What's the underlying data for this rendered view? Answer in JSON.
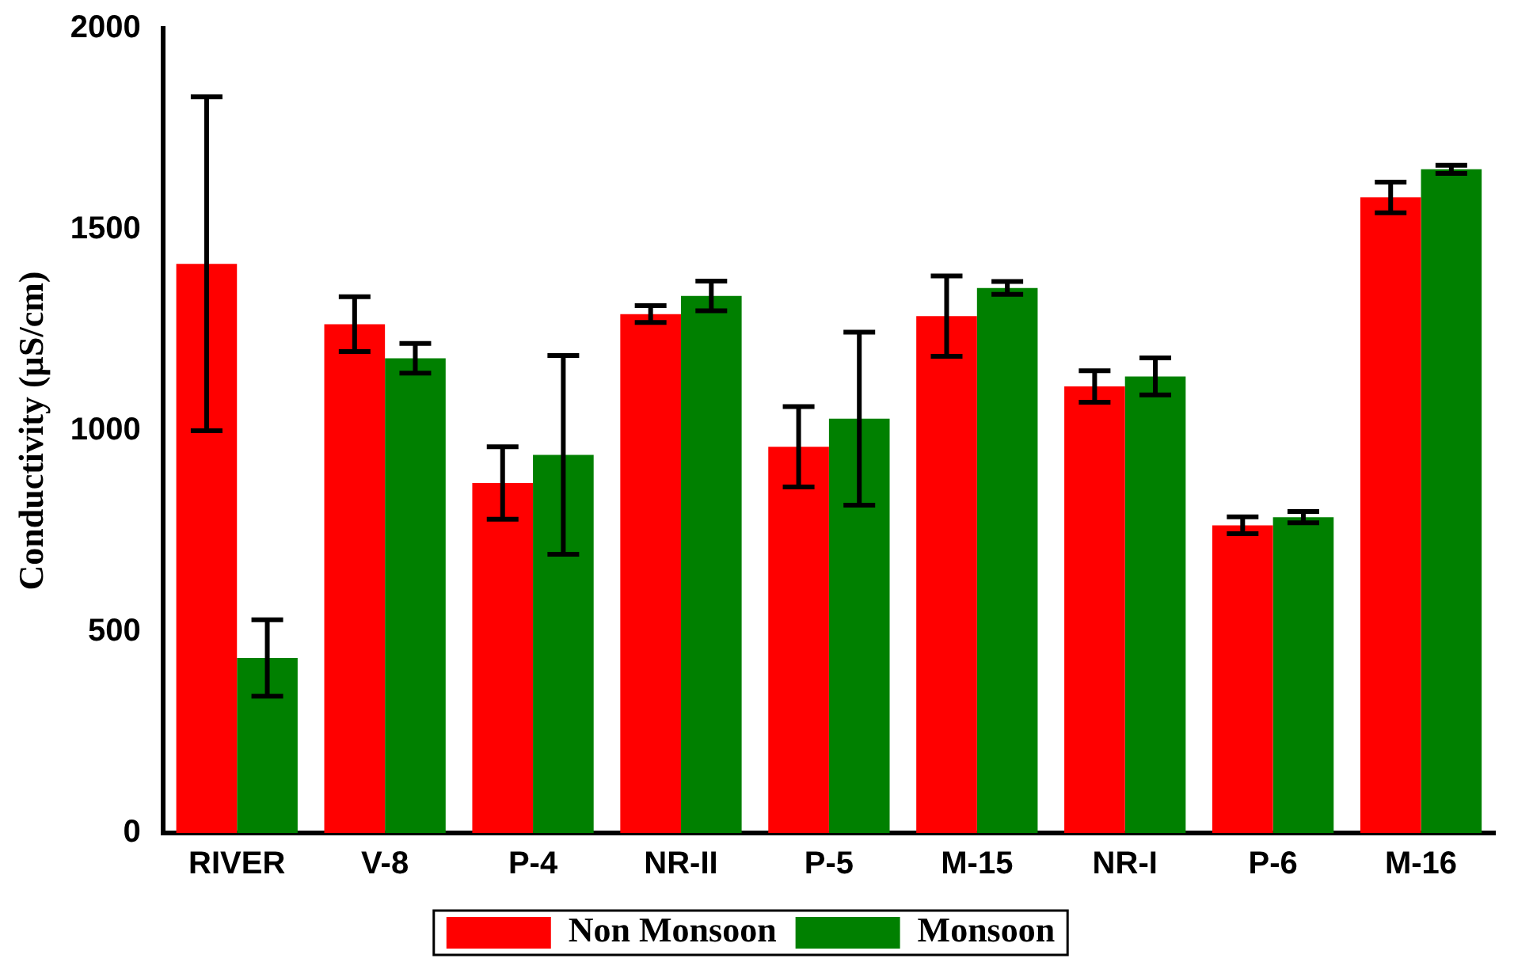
{
  "chart_data": {
    "type": "bar",
    "ylabel": "Conductivity (µS/cm)",
    "categories": [
      "RIVER",
      "V-8",
      "P-4",
      "NR-II",
      "P-5",
      "M-15",
      "NR-I",
      "P-6",
      "M-16"
    ],
    "series": [
      {
        "name": "Non Monsoon",
        "color": "#ff0000",
        "values": [
          1415,
          1265,
          870,
          1290,
          960,
          1285,
          1110,
          765,
          1580
        ],
        "errors": [
          415,
          68,
          90,
          21,
          100,
          100,
          39,
          21,
          38
        ]
      },
      {
        "name": "Monsoon",
        "color": "#008000",
        "values": [
          435,
          1180,
          940,
          1335,
          1030,
          1355,
          1135,
          785,
          1650
        ],
        "errors": [
          95,
          37,
          247,
          37,
          215,
          16,
          46,
          14,
          10
        ]
      }
    ],
    "ylim": [
      0,
      2000
    ],
    "yticks": [
      0,
      500,
      1000,
      1500,
      2000
    ],
    "grid": false,
    "legend": "bottom"
  }
}
